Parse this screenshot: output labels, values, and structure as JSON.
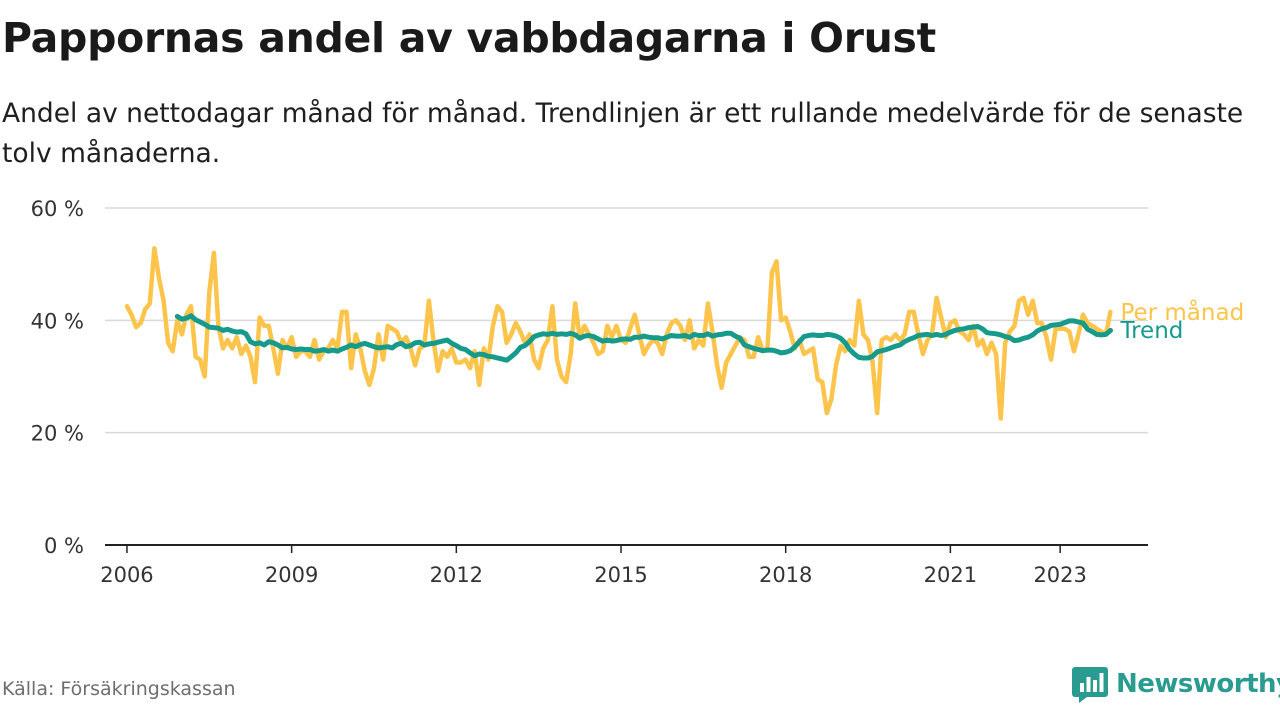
{
  "title": "Pappornas andel av vabbdagarna i Orust",
  "subtitle": "Andel av nettodagar månad för månad. Trendlinjen är ett rullande medelvärde för de senaste tolv månaderna.",
  "source": "Källa: Försäkringskassan",
  "brand": {
    "name": "Newsworthy",
    "logo_icon": "bar-chart-speech-bubble-icon"
  },
  "colors": {
    "monthly": "#fcc44a",
    "trend": "#169a8c",
    "grid": "#d9d9d9",
    "axis": "#222222",
    "brand": "#2a9b91"
  },
  "chart_data": {
    "type": "line",
    "x_unit": "year",
    "xlim": [
      2005.6,
      2024.6
    ],
    "ylim": [
      0,
      60
    ],
    "y_ticks": [
      0,
      20,
      40,
      60
    ],
    "y_tick_labels": [
      "0 %",
      "20 %",
      "40 %",
      "60 %"
    ],
    "x_ticks": [
      2006,
      2009,
      2012,
      2015,
      2018,
      2021,
      2023
    ],
    "x_tick_labels": [
      "2006",
      "2009",
      "2012",
      "2015",
      "2018",
      "2021",
      "2023"
    ],
    "grid": "horizontal",
    "series": [
      {
        "name": "Per månad",
        "color": "#fcc44a",
        "x_start": 2006.0,
        "step": 0.08333,
        "values": [
          42.5,
          41,
          38.8,
          39.5,
          42,
          43,
          52.8,
          47.5,
          43.5,
          36,
          34.5,
          40,
          37.5,
          41,
          42.5,
          33.5,
          33,
          30,
          45,
          52,
          39,
          35,
          36.5,
          35,
          37,
          34,
          35.5,
          33.5,
          29,
          40.5,
          39,
          39,
          35,
          30.5,
          36.5,
          35,
          37,
          33.5,
          34.5,
          34.5,
          33.5,
          36.5,
          33,
          34.5,
          35,
          36.5,
          35,
          41.5,
          41.5,
          31.5,
          37.5,
          35,
          31,
          28.5,
          31.5,
          37.5,
          33,
          39,
          38.5,
          38,
          36,
          37,
          35,
          32,
          35,
          35.5,
          43.5,
          36.5,
          31,
          34.5,
          33.5,
          35,
          32.5,
          32.5,
          33,
          31.5,
          34.5,
          28.5,
          35,
          33,
          39,
          42.5,
          41.5,
          36,
          37.5,
          39.5,
          38,
          36,
          37.5,
          33,
          31.5,
          35,
          36.5,
          42.5,
          33,
          30,
          29,
          34,
          43,
          37,
          39,
          37.5,
          36,
          34,
          34.5,
          39,
          37,
          39,
          36.5,
          36,
          38.5,
          41,
          37.5,
          34,
          35.5,
          36.5,
          36,
          34,
          37.5,
          39.5,
          40,
          39,
          36.5,
          40,
          35,
          36.5,
          35.5,
          43,
          38,
          32,
          28,
          32.5,
          34,
          35.5,
          37,
          36.5,
          33.5,
          33.5,
          37,
          34.5,
          35,
          48.5,
          50.5,
          40,
          40.5,
          38,
          35,
          36.5,
          34,
          34.5,
          35,
          29.5,
          29,
          23.5,
          26,
          32,
          35.5,
          34.5,
          36.5,
          35.5,
          43.5,
          37.5,
          36.5,
          32.5,
          23.5,
          36.5,
          37,
          36.5,
          37.5,
          36.5,
          37.5,
          41.5,
          41.5,
          37.5,
          34,
          36.5,
          37.5,
          44,
          40.5,
          37,
          39.5,
          40,
          38,
          37.5,
          36.5,
          39,
          35.5,
          36.5,
          34,
          36,
          34,
          22.5,
          36,
          38,
          39,
          43.5,
          44,
          41,
          43.5,
          39.5,
          39.5,
          37,
          33,
          38.5,
          38.5,
          38.5,
          38,
          34.5,
          37.5,
          41,
          39.5,
          39,
          38.5,
          38,
          37.5,
          41.5
        ]
      },
      {
        "name": "Trend",
        "color": "#169a8c",
        "x_start": 2006.917,
        "step": 0.08333,
        "values": [
          40.7,
          40.2,
          40.4,
          40.8,
          40.1,
          39.7,
          39.3,
          38.8,
          38.7,
          38.6,
          38.2,
          38.4,
          38.1,
          37.9,
          38,
          37.6,
          36.2,
          35.8,
          36,
          35.6,
          36.2,
          36,
          35.6,
          35.1,
          35.2,
          34.9,
          34.8,
          34.9,
          34.8,
          34.8,
          34.5,
          34.6,
          34.8,
          34.5,
          34.7,
          34.5,
          34.9,
          35.2,
          35.6,
          35.3,
          35.7,
          35.9,
          35.6,
          35.3,
          35.1,
          35.2,
          35.3,
          35.1,
          35.7,
          35.9,
          35.3,
          35.5,
          36,
          36.1,
          35.6,
          35.8,
          35.9,
          36.1,
          36.3,
          36.5,
          35.9,
          35.5,
          35,
          34.8,
          34.2,
          33.7,
          34,
          33.9,
          33.6,
          33.5,
          33.3,
          33.1,
          32.9,
          33.5,
          34.2,
          35.2,
          35.5,
          36.2,
          37.1,
          37.4,
          37.6,
          37.5,
          37.7,
          37.5,
          37.6,
          37.5,
          37.7,
          37.4,
          36.8,
          37.2,
          37.3,
          37.1,
          36.7,
          36.3,
          36.5,
          36.3,
          36.4,
          36.6,
          36.7,
          36.6,
          37,
          37,
          37.2,
          37,
          36.9,
          36.9,
          36.7,
          37,
          37.3,
          37.2,
          37.2,
          37.3,
          37,
          37.5,
          37.3,
          37.3,
          37.6,
          37.2,
          37.4,
          37.5,
          37.7,
          37.7,
          37.2,
          36.8,
          35.6,
          35.3,
          35,
          34.8,
          34.6,
          34.7,
          34.7,
          34.5,
          34.2,
          34.3,
          34.6,
          35.3,
          36.2,
          37.1,
          37.3,
          37.4,
          37.3,
          37.3,
          37.5,
          37.4,
          37.2,
          36.8,
          36,
          34.8,
          34,
          33.4,
          33.3,
          33.3,
          33.6,
          34.4,
          34.6,
          34.8,
          35.1,
          35.4,
          35.6,
          36.2,
          36.6,
          36.9,
          37.3,
          37.4,
          37.5,
          37.3,
          37.5,
          37.3,
          37.5,
          37.9,
          38.2,
          38.4,
          38.5,
          38.7,
          38.8,
          38.9,
          38.5,
          37.8,
          37.7,
          37.6,
          37.4,
          37.1,
          36.9,
          36.4,
          36.5,
          36.8,
          37,
          37.4,
          38.1,
          38.5,
          38.7,
          39.1,
          39.2,
          39.3,
          39.6,
          39.9,
          39.9,
          39.7,
          39.5,
          38.4,
          38,
          37.5,
          37.4,
          37.5,
          38.2
        ]
      }
    ],
    "legend": "end-of-line labels"
  }
}
